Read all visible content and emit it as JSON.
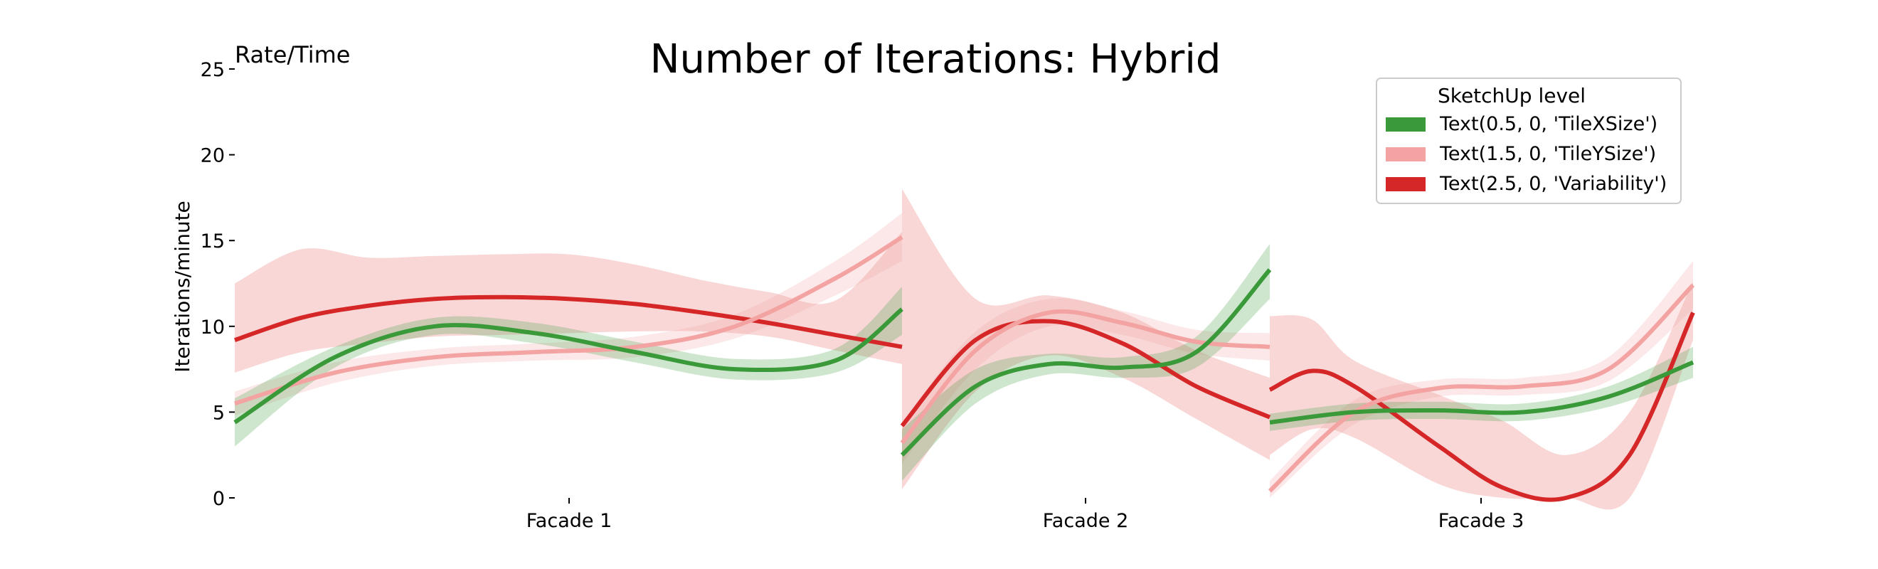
{
  "chart_data": {
    "type": "line",
    "title": "Number of Iterations: Hybrid",
    "corner_label": "Rate/Time",
    "ylabel": "Iterations/minute",
    "xlabel": "",
    "ylim": [
      0,
      25
    ],
    "yticks": [
      0,
      5,
      10,
      15,
      20,
      25
    ],
    "grid": false,
    "legend": {
      "title": "SketchUp level",
      "placement": "top-right"
    },
    "categories": [
      "Facade 1",
      "Facade 2",
      "Facade 3"
    ],
    "series": [
      {
        "name": "Text(0.5, 0, 'TileXSize')",
        "color": "#3a9a3a",
        "band_color": "#3a9a3a",
        "segments": [
          {
            "x": [
              0,
              0.15,
              0.3,
              0.45,
              0.6,
              0.75,
              0.9,
              1
            ],
            "y": [
              4.4,
              8.2,
              10.0,
              9.6,
              8.5,
              7.5,
              8.0,
              11.0
            ],
            "lo": [
              3.0,
              7.6,
              9.5,
              9.0,
              7.9,
              6.9,
              7.3,
              9.5
            ],
            "hi": [
              5.8,
              8.8,
              10.5,
              10.2,
              9.1,
              8.1,
              8.7,
              12.3
            ]
          },
          {
            "x": [
              0,
              0.2,
              0.4,
              0.6,
              0.8,
              1
            ],
            "y": [
              2.5,
              6.5,
              7.8,
              7.6,
              8.5,
              13.3
            ],
            "lo": [
              1.0,
              5.5,
              7.2,
              7.0,
              7.6,
              11.6
            ],
            "hi": [
              4.0,
              7.5,
              8.4,
              8.2,
              9.4,
              14.8
            ]
          },
          {
            "x": [
              0,
              0.2,
              0.4,
              0.6,
              0.8,
              1
            ],
            "y": [
              4.4,
              5.0,
              5.1,
              5.0,
              5.9,
              7.9
            ],
            "lo": [
              3.9,
              4.5,
              4.6,
              4.5,
              5.3,
              7.0
            ],
            "hi": [
              4.9,
              5.5,
              5.6,
              5.5,
              6.5,
              8.8
            ]
          }
        ]
      },
      {
        "name": "Text(1.5, 0, 'TileYSize')",
        "color": "#f4a3a3",
        "band_color": "#f4a3a3",
        "segments": [
          {
            "x": [
              0,
              0.15,
              0.3,
              0.45,
              0.6,
              0.75,
              0.9,
              1
            ],
            "y": [
              5.5,
              7.3,
              8.2,
              8.5,
              8.8,
              10.0,
              12.8,
              15.2
            ],
            "lo": [
              4.8,
              6.7,
              7.7,
              8.0,
              8.2,
              9.3,
              11.8,
              13.8
            ],
            "hi": [
              6.2,
              7.9,
              8.7,
              9.0,
              9.4,
              10.7,
              13.8,
              16.6
            ]
          },
          {
            "x": [
              0,
              0.2,
              0.4,
              0.6,
              0.8,
              1
            ],
            "y": [
              3.2,
              8.6,
              10.8,
              10.2,
              9.1,
              8.8
            ],
            "lo": [
              2.0,
              7.5,
              10.0,
              9.5,
              8.4,
              8.0
            ],
            "hi": [
              4.4,
              9.7,
              11.6,
              10.9,
              9.8,
              9.6
            ]
          },
          {
            "x": [
              0,
              0.2,
              0.4,
              0.6,
              0.8,
              1
            ],
            "y": [
              0.4,
              5.0,
              6.4,
              6.5,
              7.5,
              12.4
            ],
            "lo": [
              0.0,
              4.3,
              5.9,
              6.0,
              6.8,
              11.0
            ],
            "hi": [
              1.0,
              5.7,
              6.9,
              7.0,
              8.2,
              13.8
            ]
          }
        ]
      },
      {
        "name": "Text(2.5, 0, 'Variability')",
        "color": "#d62728",
        "band_color": "#f8d0d0",
        "segments": [
          {
            "x": [
              0,
              0.1,
              0.2,
              0.3,
              0.4,
              0.5,
              0.6,
              0.7,
              0.8,
              0.9,
              1
            ],
            "y": [
              9.2,
              10.5,
              11.2,
              11.6,
              11.7,
              11.6,
              11.3,
              10.8,
              10.2,
              9.5,
              8.8
            ],
            "lo": [
              7.3,
              8.5,
              9.0,
              9.4,
              9.5,
              9.6,
              9.7,
              9.7,
              9.4,
              8.6,
              7.8
            ],
            "hi": [
              12.5,
              14.5,
              14.0,
              14.1,
              14.2,
              14.2,
              13.6,
              12.7,
              12.0,
              11.5,
              15.5
            ]
          },
          {
            "x": [
              0,
              0.2,
              0.4,
              0.6,
              0.8,
              1
            ],
            "y": [
              4.2,
              9.2,
              10.3,
              9.0,
              6.5,
              4.7
            ],
            "lo": [
              0.5,
              6.2,
              8.3,
              7.0,
              4.6,
              2.2
            ],
            "hi": [
              18.0,
              11.6,
              11.8,
              10.8,
              8.6,
              7.0
            ]
          },
          {
            "x": [
              0,
              0.1,
              0.2,
              0.4,
              0.55,
              0.7,
              0.85,
              1
            ],
            "y": [
              6.3,
              7.4,
              6.5,
              3.0,
              0.6,
              -0.2,
              2.5,
              10.8
            ],
            "lo": [
              2.5,
              4.0,
              3.5,
              0.8,
              0.0,
              0.0,
              0.0,
              9.2
            ],
            "hi": [
              10.6,
              10.4,
              8.0,
              6.0,
              4.5,
              2.5,
              5.0,
              12.6
            ]
          }
        ]
      }
    ]
  }
}
